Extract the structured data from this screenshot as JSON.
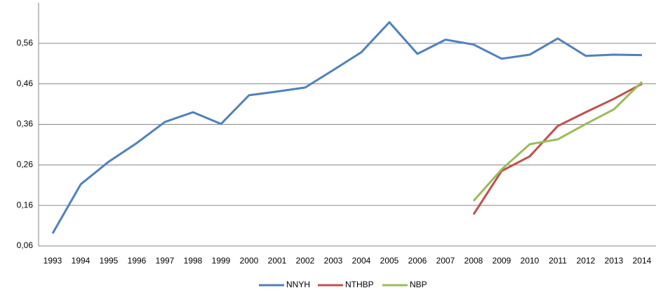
{
  "chart_data": {
    "type": "line",
    "categories": [
      "1993",
      "1994",
      "1995",
      "1996",
      "1997",
      "1998",
      "1999",
      "2000",
      "2001",
      "2002",
      "2003",
      "2004",
      "2005",
      "2006",
      "2007",
      "2008",
      "2009",
      "2010",
      "2011",
      "2012",
      "2013",
      "2014"
    ],
    "series": [
      {
        "name": "NNYH",
        "color": "#4f81bd",
        "values": [
          0.091,
          0.212,
          0.268,
          0.314,
          0.366,
          0.39,
          0.361,
          0.432,
          0.441,
          0.451,
          0.494,
          0.538,
          0.612,
          0.534,
          0.569,
          0.557,
          0.522,
          0.532,
          0.572,
          0.529,
          0.532,
          0.531
        ]
      },
      {
        "name": "NTHBP",
        "color": "#c0504d",
        "values": [
          null,
          null,
          null,
          null,
          null,
          null,
          null,
          null,
          null,
          null,
          null,
          null,
          null,
          null,
          null,
          0.138,
          0.245,
          0.281,
          0.356,
          0.39,
          0.423,
          0.46
        ]
      },
      {
        "name": "NBP",
        "color": "#9bbb59",
        "values": [
          null,
          null,
          null,
          null,
          null,
          null,
          null,
          null,
          null,
          null,
          null,
          null,
          null,
          null,
          null,
          0.171,
          0.249,
          0.311,
          0.323,
          0.361,
          0.397,
          0.465
        ]
      }
    ],
    "ylim": [
      0.06,
      0.66
    ],
    "yticks": [
      {
        "value": 0.06,
        "label": "0,06"
      },
      {
        "value": 0.16,
        "label": "0,16"
      },
      {
        "value": 0.26,
        "label": "0,26"
      },
      {
        "value": 0.36,
        "label": "0,36"
      },
      {
        "value": 0.46,
        "label": "0,46"
      },
      {
        "value": 0.56,
        "label": "0,56"
      }
    ],
    "grid": true,
    "legend": "bottom"
  }
}
